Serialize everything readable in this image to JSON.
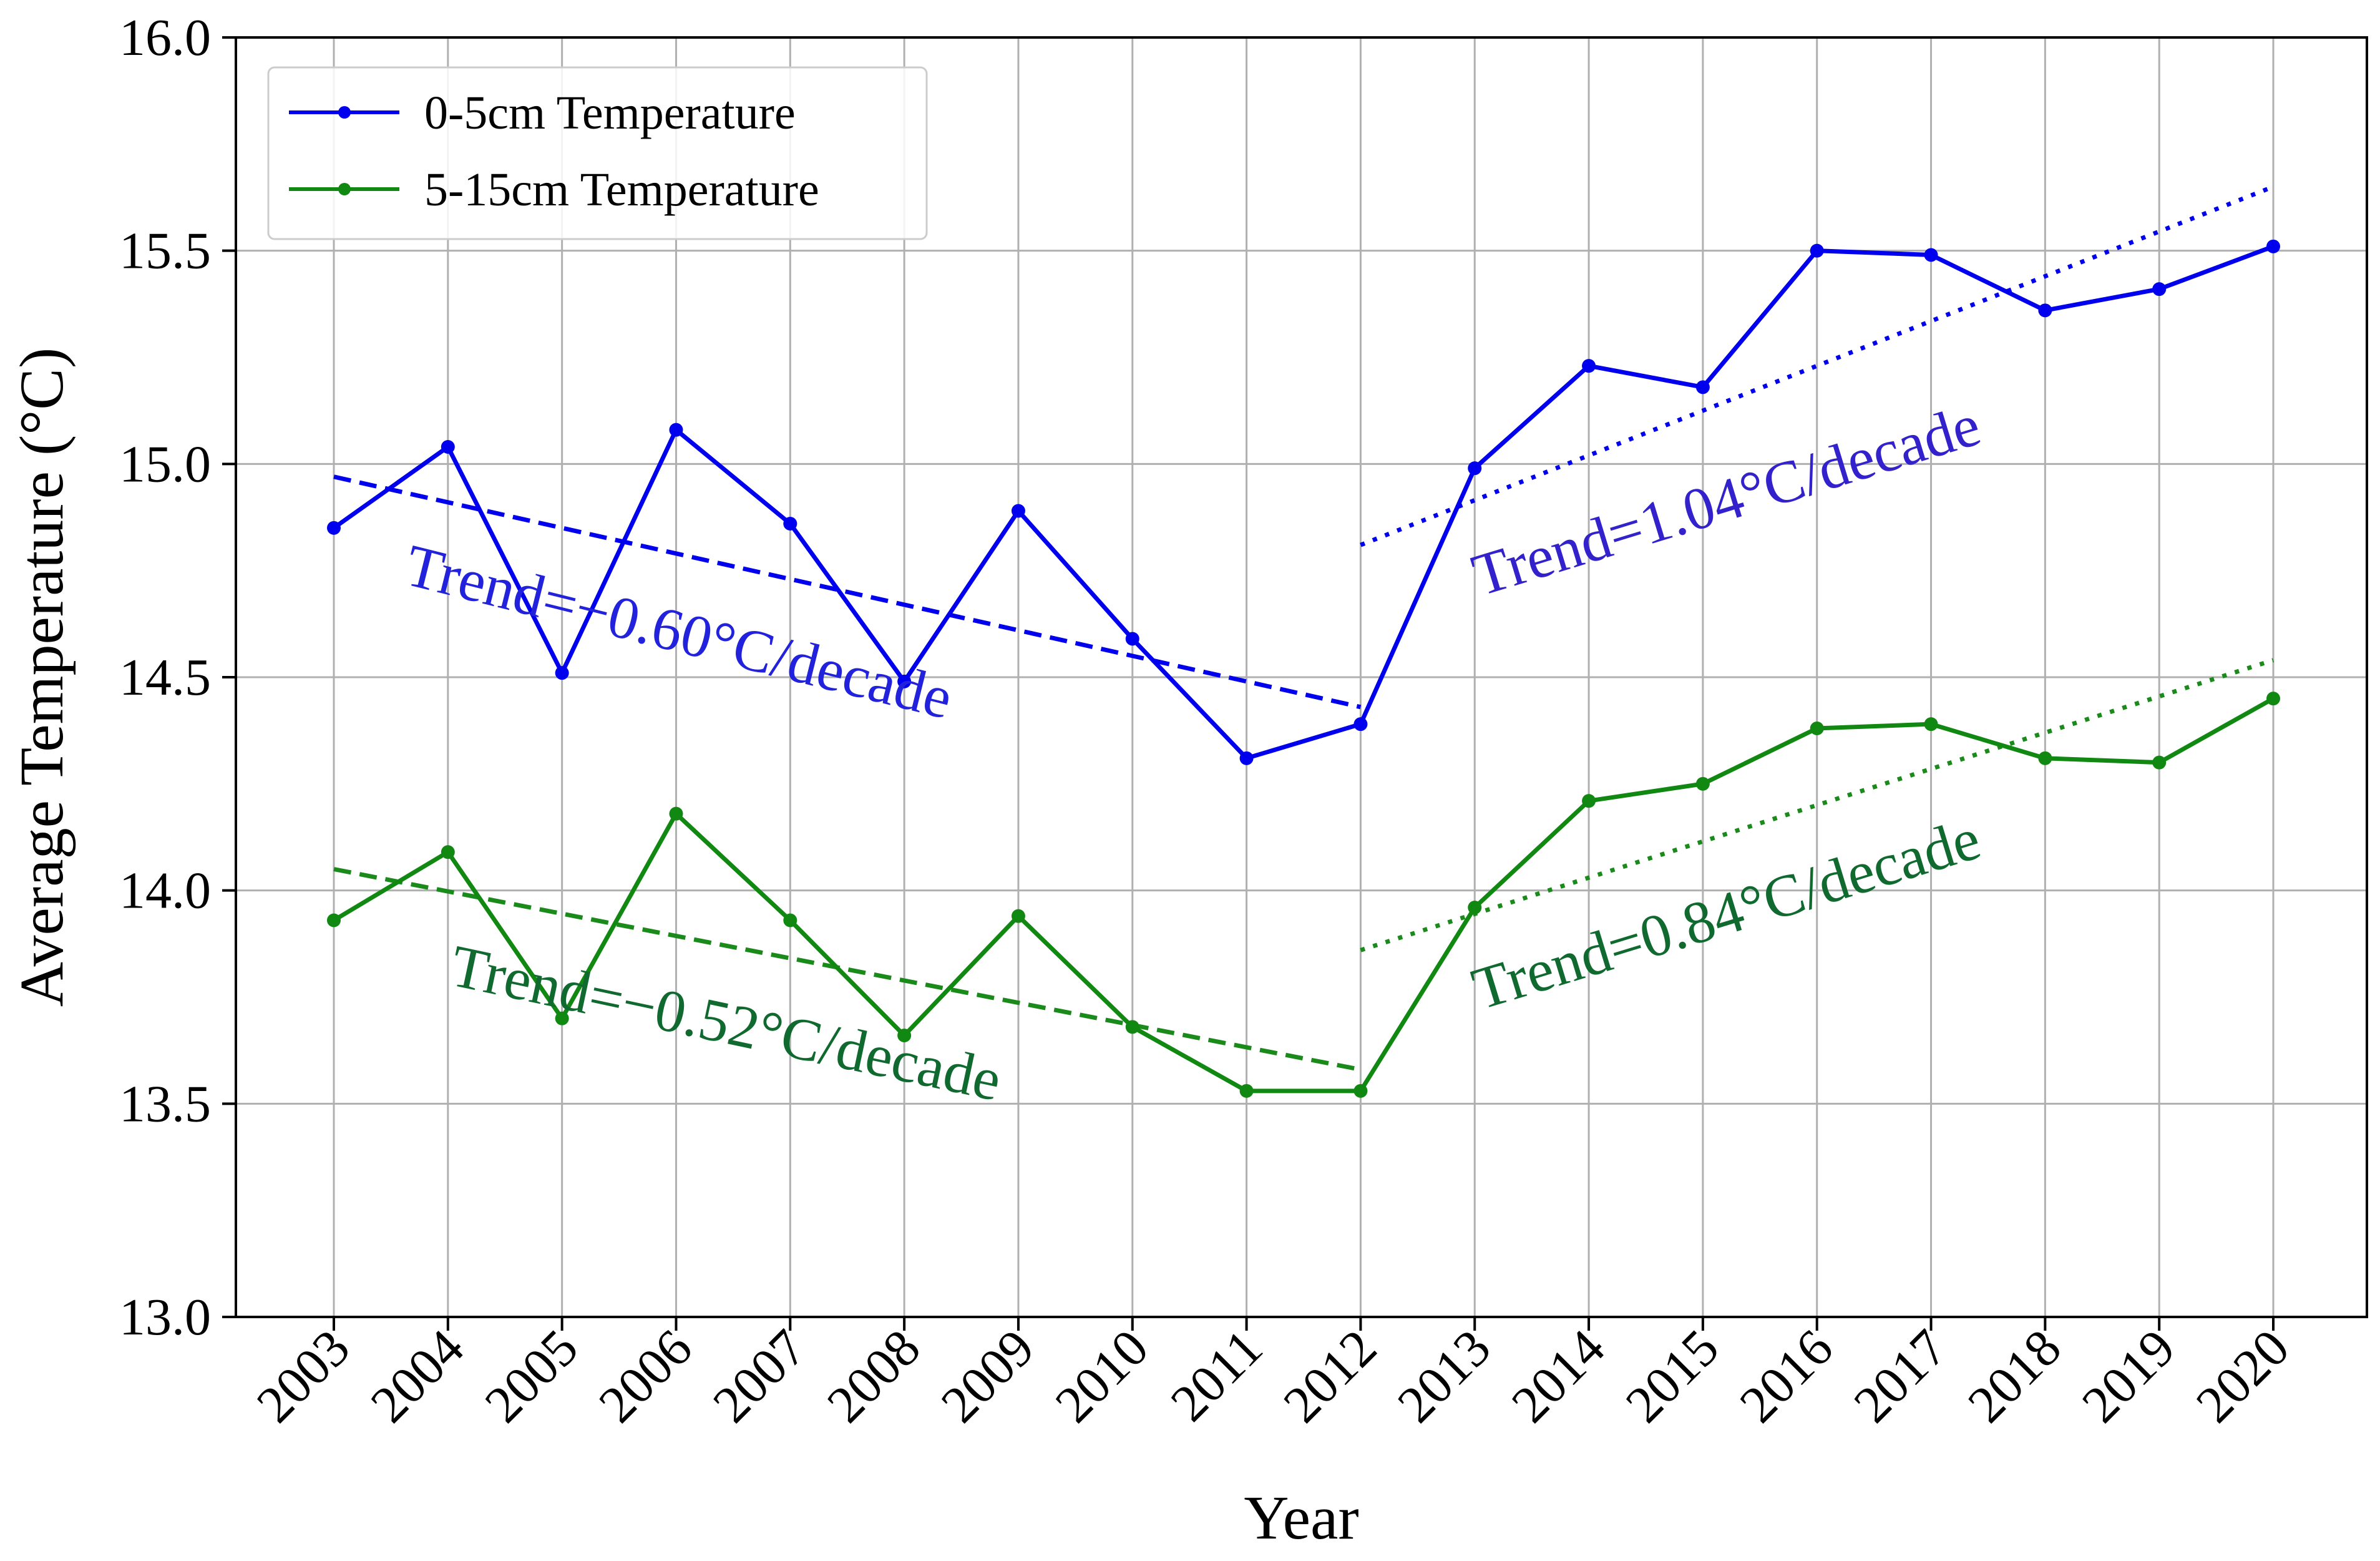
{
  "chart_data": {
    "type": "line",
    "xlabel": "Year",
    "ylabel": "Average Temperature (°C)",
    "ylim": [
      13.0,
      16.0
    ],
    "yticks": [
      "13.0",
      "13.5",
      "14.0",
      "14.5",
      "15.0",
      "15.5",
      "16.0"
    ],
    "grid": true,
    "legend_position": "top-left",
    "categories": [
      "2003",
      "2004",
      "2005",
      "2006",
      "2007",
      "2008",
      "2009",
      "2010",
      "2011",
      "2012",
      "2013",
      "2014",
      "2015",
      "2016",
      "2017",
      "2018",
      "2019",
      "2020"
    ],
    "series": [
      {
        "name": "0-5cm Temperature",
        "color": "#0000ee",
        "values": [
          14.85,
          15.04,
          14.51,
          15.08,
          14.86,
          14.49,
          14.89,
          14.59,
          14.31,
          14.39,
          14.99,
          15.23,
          15.18,
          15.5,
          15.49,
          15.36,
          15.41,
          15.51
        ]
      },
      {
        "name": "5-15cm Temperature",
        "color": "#118811",
        "values": [
          13.93,
          14.09,
          13.7,
          14.18,
          13.93,
          13.66,
          13.94,
          13.68,
          13.53,
          13.53,
          13.96,
          14.21,
          14.25,
          14.38,
          14.39,
          14.31,
          14.3,
          14.45
        ]
      }
    ],
    "trend_lines": [
      {
        "series": "0-5cm Temperature",
        "style": "dashed",
        "x_start": "2003",
        "x_end": "2012",
        "y_start": 14.97,
        "y_end": 14.43,
        "color": "#0000ee"
      },
      {
        "series": "0-5cm Temperature",
        "style": "dotted",
        "x_start": "2012",
        "x_end": "2020",
        "y_start": 14.81,
        "y_end": 15.65,
        "color": "#0000ee"
      },
      {
        "series": "5-15cm Temperature",
        "style": "dashed",
        "x_start": "2003",
        "x_end": "2012",
        "y_start": 14.05,
        "y_end": 13.58,
        "color": "#1a8a1a"
      },
      {
        "series": "5-15cm Temperature",
        "style": "dotted",
        "x_start": "2012",
        "x_end": "2020",
        "y_start": 13.86,
        "y_end": 14.54,
        "color": "#1a8a1a"
      }
    ],
    "annotations": [
      {
        "text": "Trend=−0.60°C/decade",
        "color": "#2222dd",
        "x": 2003.6,
        "y": 14.72,
        "rotate": 14
      },
      {
        "text": "Trend=1.04°C/decade",
        "color": "#3322cc",
        "x": 2013.05,
        "y": 14.69,
        "rotate": -17
      },
      {
        "text": "Trend=−0.52°C/decade",
        "color": "#106a30",
        "x": 2004.0,
        "y": 13.78,
        "rotate": 12
      },
      {
        "text": "Trend=0.84°C/decade",
        "color": "#106a30",
        "x": 2013.05,
        "y": 13.72,
        "rotate": -17
      }
    ]
  }
}
